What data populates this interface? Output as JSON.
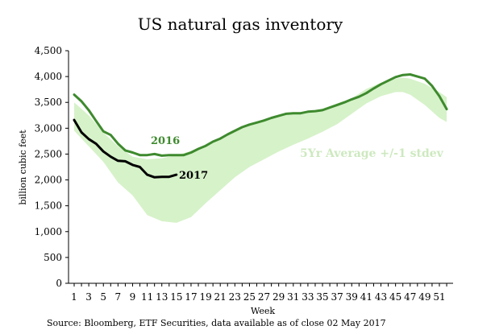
{
  "chart_data": {
    "type": "line",
    "title": "US natural gas inventory",
    "xlabel": "Week",
    "ylabel": "billion cubic feet",
    "xlim": [
      1,
      52
    ],
    "ylim": [
      0,
      4500
    ],
    "x_ticks": [
      1,
      3,
      5,
      7,
      9,
      11,
      13,
      15,
      17,
      19,
      21,
      23,
      25,
      27,
      29,
      31,
      33,
      35,
      37,
      39,
      41,
      43,
      45,
      47,
      49,
      51
    ],
    "y_ticks": [
      0,
      500,
      1000,
      1500,
      2000,
      2500,
      3000,
      3500,
      4000,
      4500
    ],
    "y_tick_labels": [
      "0",
      "500",
      "1,000",
      "1,500",
      "2,000",
      "2,500",
      "3,000",
      "3,500",
      "4,000",
      "4,500"
    ],
    "band": {
      "name": "5Yr Average +/-1 stdev",
      "color": "#d6f2c9",
      "x": [
        1,
        3,
        5,
        7,
        9,
        11,
        13,
        15,
        17,
        19,
        21,
        23,
        25,
        27,
        29,
        31,
        33,
        35,
        37,
        39,
        41,
        43,
        45,
        46,
        47,
        49,
        51,
        52
      ],
      "upper": [
        3500,
        3250,
        2920,
        2650,
        2450,
        2400,
        2420,
        2480,
        2560,
        2650,
        2800,
        2950,
        3050,
        3150,
        3250,
        3290,
        3320,
        3380,
        3480,
        3580,
        3760,
        3880,
        3960,
        3980,
        3960,
        3860,
        3700,
        3600
      ],
      "lower": [
        2950,
        2650,
        2350,
        1950,
        1700,
        1320,
        1200,
        1170,
        1280,
        1550,
        1800,
        2050,
        2250,
        2400,
        2550,
        2680,
        2800,
        2930,
        3080,
        3280,
        3480,
        3620,
        3700,
        3700,
        3650,
        3450,
        3200,
        3120
      ]
    },
    "series": [
      {
        "name": "2016",
        "color": "#3e8a2e",
        "x": [
          1,
          2,
          3,
          4,
          5,
          6,
          7,
          8,
          9,
          10,
          11,
          12,
          13,
          14,
          15,
          16,
          17,
          18,
          19,
          20,
          21,
          22,
          23,
          24,
          25,
          26,
          27,
          28,
          29,
          30,
          31,
          32,
          33,
          34,
          35,
          36,
          37,
          38,
          39,
          40,
          41,
          42,
          43,
          44,
          45,
          46,
          47,
          48,
          49,
          50,
          51,
          52
        ],
        "values": [
          3650,
          3520,
          3350,
          3140,
          2940,
          2870,
          2700,
          2570,
          2530,
          2480,
          2480,
          2500,
          2470,
          2480,
          2480,
          2480,
          2530,
          2600,
          2660,
          2740,
          2800,
          2880,
          2950,
          3020,
          3070,
          3110,
          3150,
          3200,
          3240,
          3280,
          3290,
          3290,
          3320,
          3330,
          3350,
          3400,
          3450,
          3500,
          3560,
          3610,
          3680,
          3770,
          3850,
          3920,
          3990,
          4030,
          4040,
          4000,
          3960,
          3820,
          3620,
          3370
        ]
      },
      {
        "name": "2017",
        "color": "#000000",
        "x": [
          1,
          2,
          3,
          4,
          5,
          6,
          7,
          8,
          9,
          10,
          11,
          12,
          13,
          14,
          15
        ],
        "values": [
          3160,
          2920,
          2790,
          2700,
          2550,
          2450,
          2370,
          2360,
          2290,
          2250,
          2100,
          2050,
          2060,
          2060,
          2100
        ]
      }
    ],
    "grid": false,
    "legend": "inline labels"
  },
  "source_note": "Source: Bloomberg, ETF Securities, data available as of close 02 May 2017"
}
